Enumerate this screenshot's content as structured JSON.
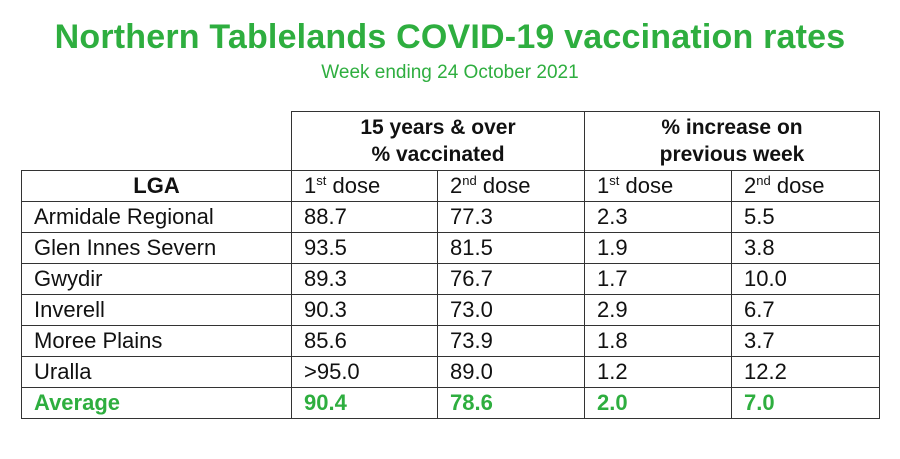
{
  "title": "Northern Tablelands COVID-19 vaccination rates",
  "subtitle": "Week ending 24 October 2021",
  "groups": {
    "vaccinated_line1": "15 years & over",
    "vaccinated_line2": "% vaccinated",
    "increase_line1": "% increase on",
    "increase_line2": "previous week"
  },
  "columns": {
    "lga": "LGA",
    "dose1_num": "1",
    "dose1_sup": "st",
    "dose1_word": " dose",
    "dose2_num": "2",
    "dose2_sup": "nd",
    "dose2_word": " dose"
  },
  "rows": [
    {
      "lga": "Armidale Regional",
      "vax_1st": "88.7",
      "vax_2nd": "77.3",
      "inc_1st": "2.3",
      "inc_2nd": "5.5"
    },
    {
      "lga": "Glen Innes Severn",
      "vax_1st": "93.5",
      "vax_2nd": "81.5",
      "inc_1st": "1.9",
      "inc_2nd": "3.8"
    },
    {
      "lga": "Gwydir",
      "vax_1st": "89.3",
      "vax_2nd": "76.7",
      "inc_1st": "1.7",
      "inc_2nd": "10.0"
    },
    {
      "lga": "Inverell",
      "vax_1st": "90.3",
      "vax_2nd": "73.0",
      "inc_1st": "2.9",
      "inc_2nd": "6.7"
    },
    {
      "lga": "Moree Plains",
      "vax_1st": "85.6",
      "vax_2nd": "73.9",
      "inc_1st": "1.8",
      "inc_2nd": "3.7"
    },
    {
      "lga": "Uralla",
      "vax_1st": ">95.0",
      "vax_2nd": "89.0",
      "inc_1st": "1.2",
      "inc_2nd": "12.2"
    }
  ],
  "average": {
    "lga": "Average",
    "vax_1st": "90.4",
    "vax_2nd": "78.6",
    "inc_1st": "2.0",
    "inc_2nd": "7.0"
  },
  "colors": {
    "accent_green": "#2eae3f",
    "text": "#111111",
    "border": "#333333"
  }
}
